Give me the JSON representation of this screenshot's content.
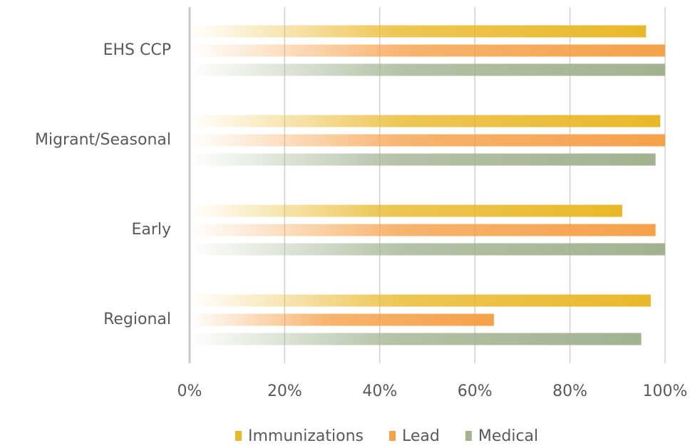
{
  "chart_data": {
    "type": "barh",
    "categories": [
      "EHS CCP",
      "Migrant/Seasonal",
      "Early",
      "Regional"
    ],
    "series": [
      {
        "name": "Immunizations",
        "color": "#e9b82a",
        "values": [
          96,
          99,
          91,
          97
        ]
      },
      {
        "name": "Lead",
        "color": "#f5a14a",
        "values": [
          100,
          100,
          98,
          64
        ]
      },
      {
        "name": "Medical",
        "color": "#a2b28f",
        "values": [
          100,
          98,
          100,
          95
        ]
      }
    ],
    "xlim": [
      0,
      100
    ],
    "xticks": [
      {
        "value": 0,
        "label": "0%"
      },
      {
        "value": 20,
        "label": "20%"
      },
      {
        "value": 40,
        "label": "40%"
      },
      {
        "value": 60,
        "label": "60%"
      },
      {
        "value": 80,
        "label": "80%"
      },
      {
        "value": 100,
        "label": "100%"
      }
    ],
    "grid": true,
    "legend": "bottom"
  }
}
